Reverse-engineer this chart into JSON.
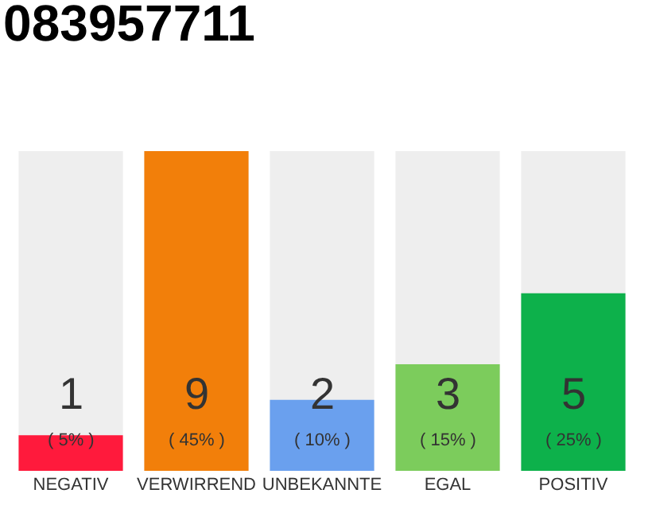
{
  "chart_data": {
    "type": "bar",
    "title": "083957711",
    "categories": [
      "NEGATIV",
      "VERWIRREND",
      "UNBEKANNTE",
      "EGAL",
      "POSITIV"
    ],
    "values": [
      1,
      9,
      2,
      3,
      5
    ],
    "colors": [
      "#ff1a3c",
      "#f27f0a",
      "#6aa0ee",
      "#7ccc5c",
      "#0db14b"
    ],
    "data_labels": true,
    "annotations": [
      "( 5% )",
      "( 45% )",
      "( 10% )",
      "( 15% )",
      "( 25% )"
    ],
    "ylim": [
      0,
      9
    ],
    "tick_labels": "x",
    "grid": false,
    "legend": false
  }
}
